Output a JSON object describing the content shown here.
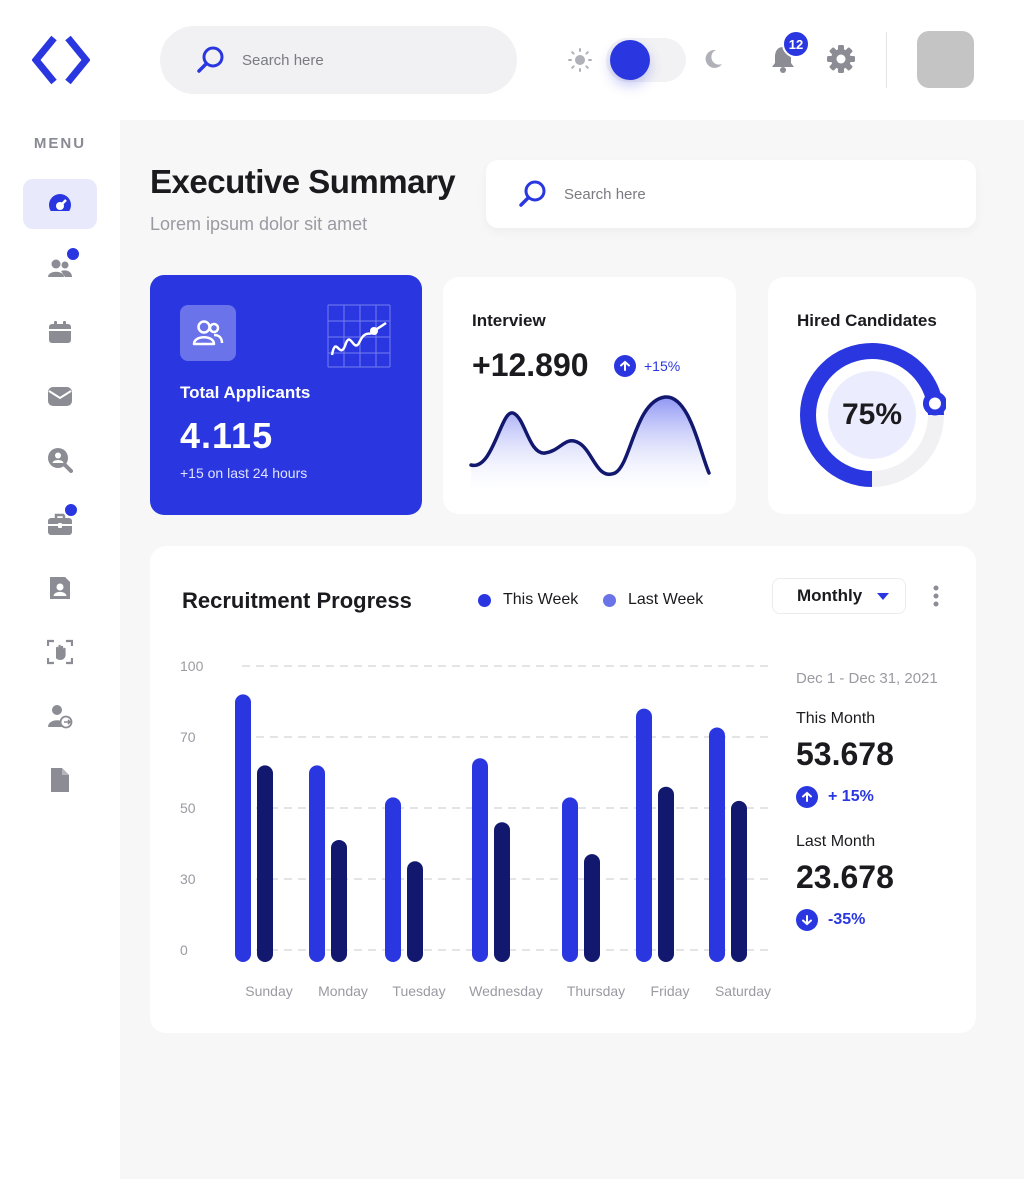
{
  "colors": {
    "accent": "#2a37e0",
    "dark_bar": "#11186e",
    "icon_gray": "#8c8c94"
  },
  "sidebar": {
    "menu_label": "MENU",
    "items": [
      {
        "icon": "dashboard-icon",
        "active": true,
        "badge": false
      },
      {
        "icon": "users-icon",
        "active": false,
        "badge": true
      },
      {
        "icon": "calendar-icon",
        "active": false,
        "badge": false
      },
      {
        "icon": "mail-icon",
        "active": false,
        "badge": false
      },
      {
        "icon": "search-user-icon",
        "active": false,
        "badge": false
      },
      {
        "icon": "briefcase-icon",
        "active": false,
        "badge": true
      },
      {
        "icon": "contact-card-icon",
        "active": false,
        "badge": false
      },
      {
        "icon": "hand-scan-icon",
        "active": false,
        "badge": false
      },
      {
        "icon": "user-logout-icon",
        "active": false,
        "badge": false
      },
      {
        "icon": "document-icon",
        "active": false,
        "badge": false
      }
    ]
  },
  "topbar": {
    "search_placeholder": "Search here",
    "notifications_count": "12"
  },
  "header": {
    "title": "Executive Summary",
    "subtitle": "Lorem ipsum  dolor sit amet",
    "search_placeholder": "Search here"
  },
  "total_applicants": {
    "title": "Total Applicants",
    "value": "4.115",
    "note": "+15 on last 24 hours"
  },
  "interview": {
    "title": "Interview",
    "value": "+12.890",
    "change": "+15%"
  },
  "hired": {
    "title": "Hired Candidates",
    "percent_label": "75%",
    "percent_value": 75
  },
  "recruitment": {
    "title": "Recruitment Progress",
    "legend": [
      "This Week",
      "Last Week"
    ],
    "dropdown_value": "Monthly",
    "date_range": "Dec 1 - Dec 31, 2021",
    "this_month": {
      "label": "This Month",
      "value": "53.678",
      "change": "+ 15%"
    },
    "last_month": {
      "label": "Last Month",
      "value": "23.678",
      "change": "-35%"
    }
  },
  "chart_data": {
    "type": "bar",
    "categories": [
      "Sunday",
      "Monday",
      "Tuesday",
      "Wednesday",
      "Thursday",
      "Friday",
      "Saturday"
    ],
    "y_ticks": [
      "100",
      "70",
      "50",
      "30",
      "0"
    ],
    "series": [
      {
        "name": "This Week",
        "values": [
          88,
          62,
          53,
          64,
          53,
          82,
          74
        ]
      },
      {
        "name": "Last Week",
        "values": [
          62,
          41,
          35,
          46,
          37,
          56,
          52
        ]
      }
    ],
    "ylim": [
      0,
      100
    ],
    "grid": true,
    "legend_position": "top"
  }
}
